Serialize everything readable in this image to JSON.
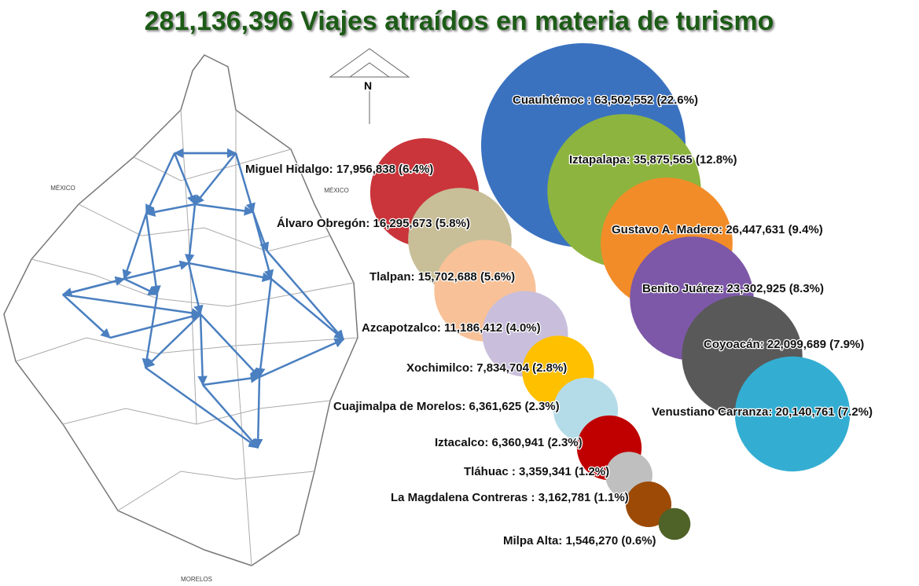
{
  "chart_data": {
    "type": "bubble",
    "title": "281,136,396 Viajes atraídos en materia de turismo",
    "map_labels": [
      "MÉXICO",
      "MÉXICO",
      "MORELOS",
      "N"
    ],
    "categories": [
      "Cuauhtémoc :",
      "Iztapalapa:",
      "Gustavo A. Madero:",
      "Benito Juárez:",
      "Coyoacán:",
      "Venustiano Carranza:",
      "Miguel Hidalgo:",
      "Álvaro Obregón:",
      "Tlalpan:",
      "Azcapotzalco:",
      "Xochimilco:",
      "Cuajimalpa de Morelos:",
      "Iztacalco:",
      "Tláhuac :",
      "La Magdalena Contreras :",
      "Milpa Alta:"
    ],
    "values": [
      63502552,
      35875565,
      26447631,
      23302925,
      22099689,
      20140761,
      17956838,
      16295673,
      15702688,
      11186412,
      7834704,
      6361625,
      6360941,
      3359341,
      3162781,
      1546270
    ],
    "value_labels": [
      "63,502,552",
      "35,875,565",
      "26,447,631",
      "23,302,925",
      "22,099,689",
      "20,140,761",
      "17,956,838",
      "16,295,673",
      "15,702,688",
      "11,186,412",
      "7,834,704",
      "6,361,625",
      "6,360,941",
      "3,359,341",
      "3,162,781",
      "1,546,270"
    ],
    "percents": [
      22.6,
      12.8,
      9.4,
      8.3,
      7.9,
      7.2,
      6.4,
      5.8,
      5.6,
      4.0,
      2.8,
      2.3,
      2.3,
      1.2,
      1.1,
      0.6
    ],
    "percent_labels": [
      "(22.6%)",
      "(12.8%)",
      "(9.4%)",
      "(8.3%)",
      "(7.9%)",
      "(7.2%)",
      "(6.4%)",
      "(5.8%)",
      "(5.6%)",
      "(4.0%)",
      "(2.8%)",
      "(2.3%)",
      "(2.3%)",
      "(1.2%)",
      "(1.1%)",
      "(0.6%)"
    ],
    "colors": [
      "#3a72c0",
      "#8db43e",
      "#f28c28",
      "#7d58a8",
      "#595959",
      "#33aed2",
      "#c9353a",
      "#c8bf99",
      "#f8c197",
      "#c9bfdc",
      "#ffc000",
      "#b4dce8",
      "#c00000",
      "#bfbfbf",
      "#9c4a06",
      "#4f6228"
    ]
  }
}
